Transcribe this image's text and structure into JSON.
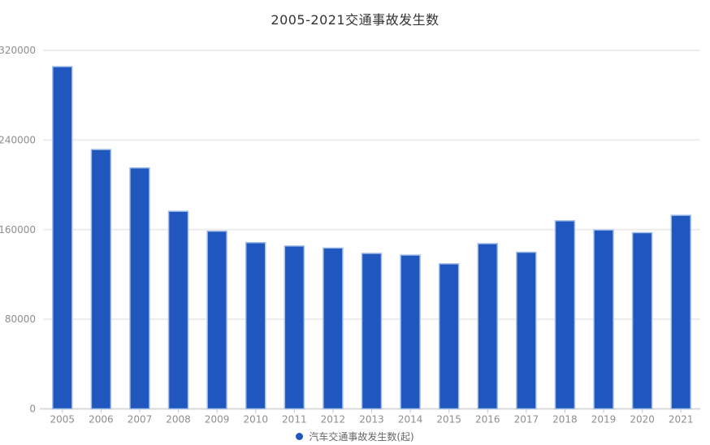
{
  "title": "2005-2021交通事故发生数",
  "legend": {
    "label": "汽车交通事故发生数(起)"
  },
  "colors": {
    "bar_fill": "#2057BE",
    "bar_stroke": "#A4BFE8",
    "gridline": "#ececec",
    "axis_line": "#d9d9d9",
    "axis_tick": "#c4c4c4",
    "axis_label": "#8e8e8e",
    "title_text": "#333333",
    "legend_text": "#666666"
  },
  "chart_data": {
    "type": "bar",
    "title": "2005-2021交通事故发生数",
    "categories": [
      "2005",
      "2006",
      "2007",
      "2008",
      "2009",
      "2010",
      "2011",
      "2012",
      "2013",
      "2014",
      "2015",
      "2016",
      "2017",
      "2018",
      "2019",
      "2020",
      "2021"
    ],
    "series": [
      {
        "name": "汽车交通事故发生数(起)",
        "values": [
          305500,
          231500,
          215100,
          176400,
          158600,
          148400,
          145400,
          143600,
          138800,
          137300,
          129500,
          147500,
          139800,
          167900,
          159700,
          157300,
          172800
        ]
      }
    ],
    "xlabel": "",
    "ylabel": "",
    "ylim": [
      0,
      320000
    ],
    "yticks": [
      0,
      80000,
      160000,
      240000,
      320000
    ],
    "grid": true,
    "legend_position": "bottom"
  }
}
